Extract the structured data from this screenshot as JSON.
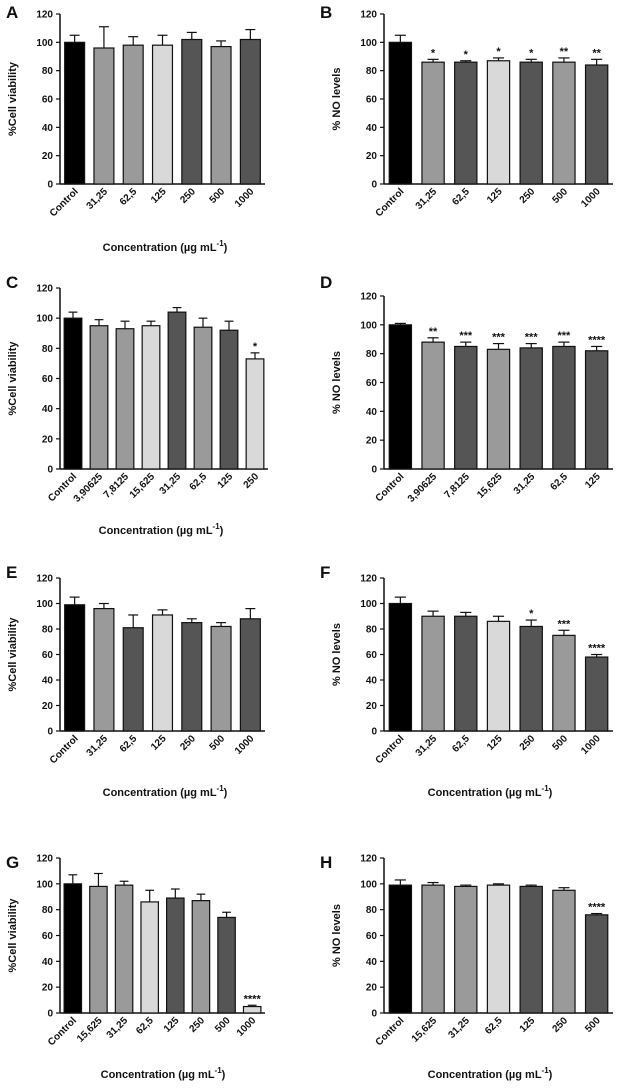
{
  "colors": {
    "black": "#000000",
    "light": "#d9d9d9",
    "mid": "#9a9a9a",
    "dark": "#555555",
    "axis": "#111111"
  },
  "chart_data": [
    {
      "id": "A",
      "type": "bar",
      "letter": "A",
      "ylabel": "%Cell viability",
      "xlabel": "Concentration",
      "xlabel_unit": "(µg mL",
      "xlabel_exp": "-1",
      "xlabel_close": ")",
      "ylim": [
        0,
        120
      ],
      "yticks": [
        "0",
        "20",
        "40",
        "60",
        "80",
        "100",
        "120"
      ],
      "categories": [
        "Control",
        "31,25",
        "62,5",
        "125",
        "250",
        "500",
        "1000"
      ],
      "values": [
        100,
        96,
        98,
        98,
        102,
        97,
        102
      ],
      "errors": [
        5,
        15,
        6,
        7,
        5,
        4,
        7
      ],
      "significance": [
        "",
        "",
        "",
        "",
        "",
        "",
        ""
      ],
      "fills": [
        "black",
        "mid",
        "mid",
        "light",
        "dark",
        "mid",
        "dark"
      ]
    },
    {
      "id": "B",
      "type": "bar",
      "letter": "B",
      "ylabel": "% NO levels",
      "xlabel": "",
      "ylim": [
        0,
        120
      ],
      "yticks": [
        "0",
        "20",
        "40",
        "60",
        "80",
        "100",
        "120"
      ],
      "categories": [
        "Control",
        "31,25",
        "62,5",
        "125",
        "250",
        "500",
        "1000"
      ],
      "values": [
        100,
        86,
        86,
        87,
        86,
        86,
        84
      ],
      "errors": [
        5,
        2,
        1,
        2,
        2,
        3,
        4
      ],
      "significance": [
        "",
        "*",
        "*",
        "*",
        "*",
        "**",
        "**"
      ],
      "fills": [
        "black",
        "mid",
        "dark",
        "light",
        "dark",
        "mid",
        "dark"
      ]
    },
    {
      "id": "C",
      "type": "bar",
      "letter": "C",
      "ylabel": "%Cell viability",
      "xlabel": "Concentration",
      "xlabel_unit": "(µg mL",
      "xlabel_exp": "-1",
      "xlabel_close": ")",
      "ylim": [
        0,
        120
      ],
      "yticks": [
        "0",
        "20",
        "40",
        "60",
        "80",
        "100",
        "120"
      ],
      "categories": [
        "Control",
        "3,90625",
        "7,8125",
        "15,625",
        "31,25",
        "62,5",
        "125",
        "250"
      ],
      "values": [
        100,
        95,
        93,
        95,
        104,
        94,
        92,
        73
      ],
      "errors": [
        4,
        4,
        5,
        3,
        3,
        6,
        6,
        4
      ],
      "significance": [
        "",
        "",
        "",
        "",
        "",
        "",
        "",
        "*"
      ],
      "fills": [
        "black",
        "mid",
        "mid",
        "light",
        "dark",
        "mid",
        "dark",
        "light"
      ]
    },
    {
      "id": "D",
      "type": "bar",
      "letter": "D",
      "ylabel": "% NO levels",
      "xlabel": "",
      "ylim": [
        0,
        120
      ],
      "yticks": [
        "0",
        "20",
        "40",
        "60",
        "80",
        "100",
        "120"
      ],
      "categories": [
        "Control",
        "3,90625",
        "7,8125",
        "15,625",
        "31,25",
        "62,5",
        "125"
      ],
      "values": [
        100,
        88,
        85,
        83,
        84,
        85,
        82
      ],
      "errors": [
        1,
        3,
        3,
        4,
        3,
        3,
        3
      ],
      "significance": [
        "",
        "**",
        "***",
        "***",
        "***",
        "***",
        "****"
      ],
      "fills": [
        "black",
        "mid",
        "dark",
        "mid",
        "dark",
        "dark",
        "dark"
      ]
    },
    {
      "id": "E",
      "type": "bar",
      "letter": "E",
      "ylabel": "%Cell viability",
      "xlabel": "Concentration",
      "xlabel_unit": "(µg mL",
      "xlabel_exp": "-1",
      "xlabel_close": ")",
      "ylim": [
        0,
        120
      ],
      "yticks": [
        "0",
        "20",
        "40",
        "60",
        "80",
        "100",
        "120"
      ],
      "categories": [
        "Control",
        "31,25",
        "62,5",
        "125",
        "250",
        "500",
        "1000"
      ],
      "values": [
        99,
        96,
        81,
        91,
        85,
        82,
        88
      ],
      "errors": [
        6,
        4,
        10,
        4,
        3,
        3,
        8
      ],
      "significance": [
        "",
        "",
        "",
        "",
        "",
        "",
        ""
      ],
      "fills": [
        "black",
        "mid",
        "dark",
        "light",
        "dark",
        "mid",
        "dark"
      ]
    },
    {
      "id": "F",
      "type": "bar",
      "letter": "F",
      "ylabel": "% NO levels",
      "xlabel": "Concentration",
      "xlabel_unit": "(µg mL",
      "xlabel_exp": "-1",
      "xlabel_close": ")",
      "ylim": [
        0,
        120
      ],
      "yticks": [
        "0",
        "20",
        "40",
        "60",
        "80",
        "100",
        "120"
      ],
      "categories": [
        "Control",
        "31,25",
        "62,5",
        "125",
        "250",
        "500",
        "1000"
      ],
      "values": [
        100,
        90,
        90,
        86,
        82,
        75,
        58
      ],
      "errors": [
        5,
        4,
        3,
        4,
        5,
        4,
        2
      ],
      "significance": [
        "",
        "",
        "",
        "",
        "*",
        "***",
        "****"
      ],
      "fills": [
        "black",
        "mid",
        "dark",
        "light",
        "dark",
        "mid",
        "dark"
      ]
    },
    {
      "id": "G",
      "type": "bar",
      "letter": "G",
      "ylabel": "%Cell viability",
      "xlabel": "Concentration",
      "xlabel_unit": "(µg mL",
      "xlabel_exp": "-1",
      "xlabel_close": ")",
      "ylim": [
        0,
        120
      ],
      "yticks": [
        "0",
        "20",
        "40",
        "60",
        "80",
        "100",
        "120"
      ],
      "categories": [
        "Control",
        "15,625",
        "31,25",
        "62,5",
        "125",
        "250",
        "500",
        "1000"
      ],
      "values": [
        100,
        98,
        99,
        86,
        89,
        87,
        74,
        5
      ],
      "errors": [
        7,
        10,
        3,
        9,
        7,
        5,
        4,
        1
      ],
      "significance": [
        "",
        "",
        "",
        "",
        "",
        "",
        "",
        "****"
      ],
      "fills": [
        "black",
        "mid",
        "mid",
        "light",
        "dark",
        "mid",
        "dark",
        "light"
      ]
    },
    {
      "id": "H",
      "type": "bar",
      "letter": "H",
      "ylabel": "% NO levels",
      "xlabel": "Concentration",
      "xlabel_unit": "(µg mL",
      "xlabel_exp": "-1",
      "xlabel_close": ")",
      "ylim": [
        0,
        120
      ],
      "yticks": [
        "0",
        "20",
        "40",
        "60",
        "80",
        "100",
        "120"
      ],
      "categories": [
        "Control",
        "15,625",
        "31,25",
        "62,5",
        "125",
        "250",
        "500"
      ],
      "values": [
        99,
        99,
        98,
        99,
        98,
        95,
        76
      ],
      "errors": [
        4,
        2,
        1,
        1,
        1,
        2,
        1
      ],
      "significance": [
        "",
        "",
        "",
        "",
        "",
        "",
        "****"
      ],
      "fills": [
        "black",
        "mid",
        "mid",
        "light",
        "dark",
        "mid",
        "dark"
      ]
    }
  ]
}
